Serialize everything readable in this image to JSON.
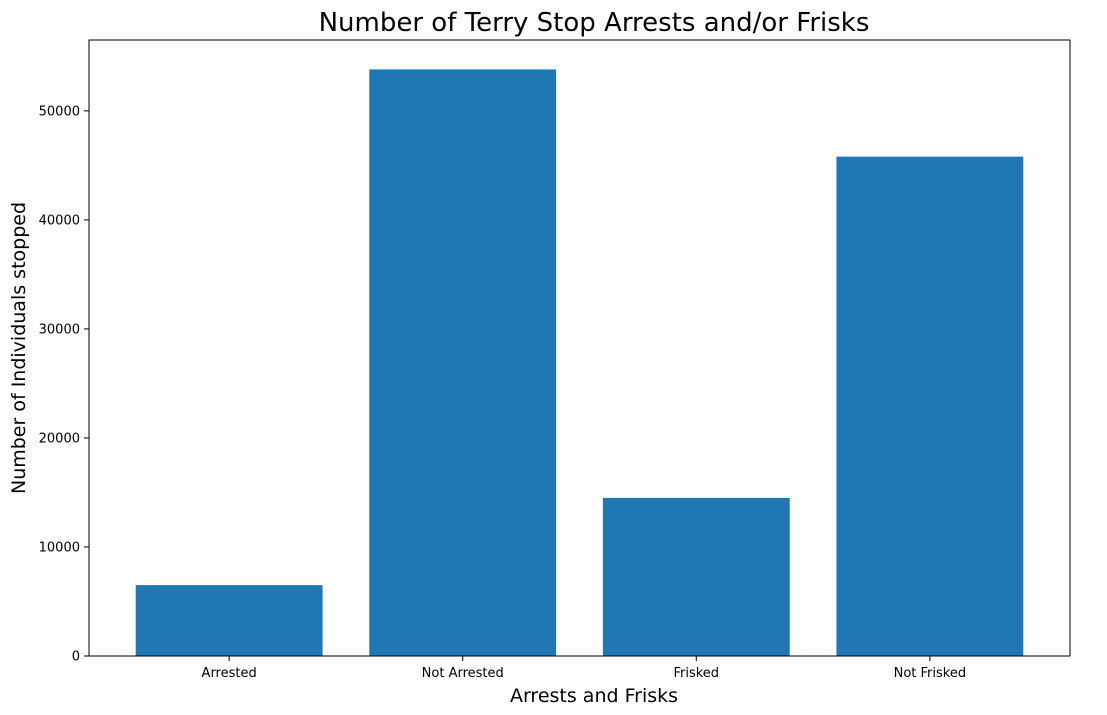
{
  "chart_data": {
    "type": "bar",
    "title": "Number of Terry Stop Arrests and/or Frisks",
    "xlabel": "Arrests and Frisks",
    "ylabel": "Number of Individuals stopped",
    "categories": [
      "Arrested",
      "Not Arrested",
      "Frisked",
      "Not Frisked"
    ],
    "values": [
      6500,
      53800,
      14500,
      45800
    ],
    "ylim": [
      0,
      56500
    ],
    "yticks": [
      0,
      10000,
      20000,
      30000,
      40000,
      50000
    ],
    "ytick_labels": [
      "0",
      "10000",
      "20000",
      "30000",
      "40000",
      "50000"
    ],
    "bar_color": "#1f77b4",
    "grid": false,
    "legend": "none"
  }
}
